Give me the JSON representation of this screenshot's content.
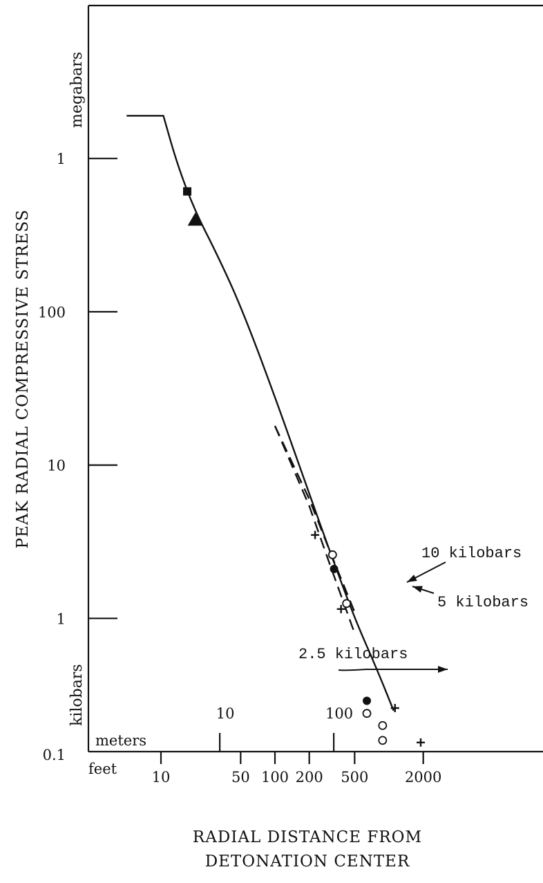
{
  "chart_data": {
    "type": "scatter",
    "ylabel": "PEAK RADIAL COMPRESSIVE STRESS",
    "xlabel_lines": [
      "RADIAL DISTANCE FROM",
      "DETONATION CENTER"
    ],
    "y_unit_labels": [
      "megabars",
      "kilobars"
    ],
    "y_scale": "log",
    "x_scale": "log",
    "y_range_kilobars": [
      0.1,
      3000
    ],
    "x_range_feet": [
      5,
      3800
    ],
    "y_ticks": [
      {
        "label": "1",
        "value_kilobars": 1000
      },
      {
        "label": "100",
        "value_kilobars": 100
      },
      {
        "label": "10",
        "value_kilobars": 10
      },
      {
        "label": "1",
        "value_kilobars": 1
      },
      {
        "label": "0.1",
        "value_kilobars": 0.1
      }
    ],
    "x_meters_label": "meters",
    "x_meters_ticks": [
      {
        "label": "10",
        "value_feet": 32.8
      },
      {
        "label": "100",
        "value_feet": 328
      }
    ],
    "x_feet_label": "feet",
    "x_feet_ticks": [
      "10",
      "50",
      "100",
      "200",
      "500",
      "2000"
    ],
    "x_feet_tick_values": [
      10,
      50,
      100,
      200,
      500,
      2000
    ],
    "series": [
      {
        "style": "solid",
        "points": [
          [
            5,
            1900
          ],
          [
            10.5,
            1900
          ],
          [
            14,
            900
          ],
          [
            20,
            450
          ],
          [
            30,
            250
          ],
          [
            50,
            110
          ],
          [
            100,
            28
          ],
          [
            200,
            6.5
          ],
          [
            300,
            2.8
          ],
          [
            500,
            1.0
          ],
          [
            800,
            0.45
          ],
          [
            1100,
            0.25
          ]
        ]
      },
      {
        "style": "dashed",
        "points": [
          [
            100,
            18
          ],
          [
            200,
            6.0
          ],
          [
            300,
            2.8
          ],
          [
            500,
            1.1
          ]
        ]
      },
      {
        "style": "dashed",
        "points": [
          [
            100,
            18
          ],
          [
            200,
            5.4
          ],
          [
            300,
            2.3
          ],
          [
            500,
            0.8
          ]
        ]
      }
    ],
    "markers": [
      {
        "shape": "square-filled",
        "x": 17,
        "y": 610
      },
      {
        "shape": "triangle-filled",
        "x": 20,
        "y": 400
      },
      {
        "shape": "plus",
        "x": 225,
        "y": 3.5
      },
      {
        "shape": "circle-open",
        "x": 320,
        "y": 2.6
      },
      {
        "shape": "circle-filled",
        "x": 330,
        "y": 2.1
      },
      {
        "shape": "plus",
        "x": 380,
        "y": 1.15
      },
      {
        "shape": "circle-open",
        "x": 425,
        "y": 1.25
      },
      {
        "shape": "circle-filled",
        "x": 640,
        "y": 0.29
      },
      {
        "shape": "circle-open",
        "x": 640,
        "y": 0.24
      },
      {
        "shape": "circle-open",
        "x": 880,
        "y": 0.2
      },
      {
        "shape": "circle-open",
        "x": 880,
        "y": 0.16
      },
      {
        "shape": "plus",
        "x": 1130,
        "y": 0.26
      },
      {
        "shape": "plus",
        "x": 1900,
        "y": 0.155
      }
    ],
    "annotations": [
      {
        "text": "10 kilobars",
        "points_to": [
          540,
          2.2
        ]
      },
      {
        "text": "5 kilobars",
        "points_to": [
          440,
          1.55
        ]
      },
      {
        "text": "2.5 kilobars",
        "points_to": [
          800,
          0.45
        ]
      }
    ]
  }
}
